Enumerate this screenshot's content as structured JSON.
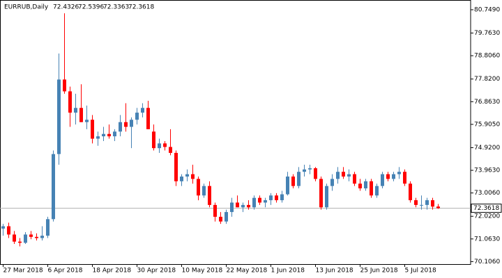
{
  "chart_data": {
    "type": "candlestick",
    "title": "EURRUB,Daily",
    "categories": [
      "27 Mar 2018",
      null,
      null,
      null,
      null,
      null,
      null,
      null,
      "6 Apr 2018",
      null,
      null,
      null,
      null,
      null,
      null,
      null,
      "18 Apr 2018",
      null,
      null,
      null,
      null,
      null,
      null,
      null,
      "30 Apr 2018",
      null,
      null,
      null,
      null,
      null,
      null,
      null,
      "10 May 2018",
      null,
      null,
      null,
      null,
      null,
      null,
      null,
      "22 May 2018",
      null,
      null,
      null,
      null,
      null,
      null,
      null,
      "1 Jun 2018",
      null,
      null,
      null,
      null,
      null,
      null,
      null,
      "13 Jun 2018",
      null,
      null,
      null,
      null,
      null,
      null,
      null,
      "25 Jun 2018",
      null,
      null,
      null,
      null,
      null,
      null,
      null,
      "5 Jul 2018",
      null,
      null,
      null,
      null,
      null,
      null
    ],
    "open": [
      71.5,
      71.6,
      71.25,
      70.95,
      70.9,
      71.25,
      71.15,
      71.1,
      71.2,
      71.9,
      74.65,
      77.8,
      77.3,
      76.4,
      76.6,
      76.0,
      76.1,
      75.3,
      75.4,
      75.5,
      75.4,
      75.6,
      76.0,
      75.8,
      76.1,
      76.4,
      76.6,
      75.6,
      74.9,
      75.1,
      74.95,
      74.7,
      73.5,
      73.7,
      73.8,
      73.6,
      72.9,
      73.3,
      72.5,
      72.0,
      71.8,
      72.2,
      72.6,
      72.4,
      72.5,
      72.4,
      72.8,
      72.6,
      72.7,
      72.9,
      72.7,
      72.95,
      73.7,
      73.3,
      73.9,
      74.0,
      74.05,
      73.6,
      72.4,
      73.3,
      73.6,
      73.9,
      73.7,
      73.8,
      73.4,
      73.2,
      73.5,
      72.9,
      73.3,
      73.8,
      73.6,
      73.8,
      73.9,
      73.4,
      72.7,
      72.5,
      72.5,
      72.7,
      72.4326
    ],
    "high": [
      71.7,
      71.75,
      71.4,
      71.1,
      71.35,
      71.4,
      71.3,
      71.6,
      72.0,
      74.8,
      78.9,
      80.6,
      77.5,
      77.2,
      77.6,
      76.7,
      76.3,
      75.6,
      75.8,
      75.9,
      75.7,
      76.3,
      76.8,
      76.2,
      76.6,
      76.8,
      76.9,
      75.9,
      75.3,
      75.2,
      75.7,
      74.8,
      73.8,
      74.0,
      74.2,
      73.7,
      73.4,
      73.5,
      72.6,
      72.2,
      72.3,
      72.8,
      72.9,
      72.6,
      72.7,
      72.9,
      72.9,
      72.8,
      73.0,
      73.0,
      73.1,
      73.9,
      73.8,
      74.1,
      74.2,
      74.2,
      74.1,
      73.7,
      73.4,
      73.8,
      74.1,
      74.1,
      74.0,
      73.9,
      73.6,
      73.6,
      73.6,
      73.4,
      73.9,
      73.9,
      73.9,
      74.1,
      74.0,
      73.5,
      72.8,
      72.9,
      72.8,
      72.8,
      72.5396
    ],
    "low": [
      71.2,
      71.1,
      70.85,
      70.75,
      70.85,
      71.05,
      71.0,
      71.0,
      71.1,
      71.8,
      74.2,
      77.2,
      75.8,
      75.9,
      76.0,
      75.7,
      75.1,
      75.0,
      75.2,
      75.3,
      75.2,
      75.4,
      75.6,
      74.9,
      75.9,
      76.2,
      75.7,
      74.8,
      74.7,
      74.8,
      74.6,
      73.3,
      73.3,
      73.5,
      73.4,
      72.7,
      72.8,
      72.4,
      71.8,
      71.7,
      71.7,
      72.0,
      72.4,
      72.2,
      72.3,
      72.3,
      72.5,
      72.4,
      72.5,
      72.6,
      72.6,
      72.9,
      73.2,
      73.2,
      73.7,
      73.8,
      73.5,
      72.3,
      72.3,
      73.1,
      73.4,
      73.6,
      73.5,
      73.3,
      73.1,
      73.1,
      72.8,
      72.8,
      73.2,
      73.5,
      73.5,
      73.6,
      73.3,
      72.6,
      72.4,
      72.3,
      72.3,
      72.3,
      72.3363
    ],
    "close": [
      71.6,
      71.25,
      70.95,
      70.9,
      71.25,
      71.15,
      71.1,
      71.2,
      71.9,
      74.65,
      77.8,
      77.3,
      76.4,
      76.6,
      76.0,
      76.1,
      75.3,
      75.4,
      75.5,
      75.4,
      75.6,
      76.0,
      75.8,
      76.1,
      76.4,
      76.6,
      75.7,
      74.9,
      75.1,
      74.95,
      74.7,
      73.5,
      73.7,
      73.8,
      73.6,
      72.9,
      73.3,
      72.5,
      72.0,
      71.8,
      72.2,
      72.6,
      72.4,
      72.5,
      72.4,
      72.8,
      72.6,
      72.7,
      72.9,
      72.7,
      72.95,
      73.7,
      73.3,
      73.9,
      74.0,
      74.05,
      73.6,
      72.4,
      73.3,
      73.6,
      73.9,
      73.7,
      73.8,
      73.4,
      73.2,
      73.5,
      72.9,
      73.3,
      73.8,
      73.6,
      73.8,
      73.9,
      73.4,
      72.7,
      72.5,
      72.5,
      72.7,
      72.43,
      72.3618
    ],
    "up_color": "#4682b4",
    "down_color": "#ff0000",
    "ylim": [
      70.0,
      81.16
    ],
    "yticks": [
      {
        "value": 70.106,
        "label": "70.1060"
      },
      {
        "value": 71.063,
        "label": "71.0630"
      },
      {
        "value": 72.02,
        "label": "72.0200"
      },
      {
        "value": 73.006,
        "label": "73.0060"
      },
      {
        "value": 73.963,
        "label": "73.9630"
      },
      {
        "value": 74.92,
        "label": "74.9200"
      },
      {
        "value": 75.905,
        "label": "75.9050"
      },
      {
        "value": 76.863,
        "label": "76.8630"
      },
      {
        "value": 77.82,
        "label": "77.8200"
      },
      {
        "value": 78.806,
        "label": "78.8060"
      },
      {
        "value": 79.763,
        "label": "79.7630"
      },
      {
        "value": 80.749,
        "label": "80.7490"
      }
    ]
  }
}
